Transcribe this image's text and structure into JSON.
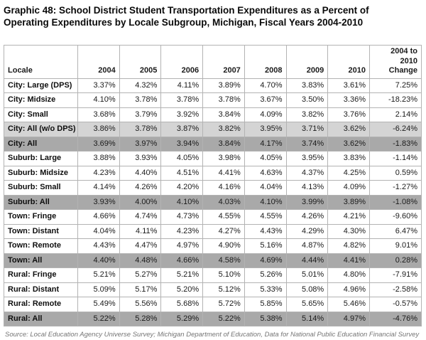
{
  "page": {
    "title": "Graphic 48: School District Student Transportation Expenditures as a Percent of Operating Expenditures by Locale Subgroup, Michigan, Fiscal Years 2004-2010",
    "source": "Source: Local Education Agency Universe Survey; Michigan Department of Education, Data for National Public Education Financial Survey"
  },
  "colors": {
    "row_shade_light": "#d4d4d4",
    "row_shade_dark": "#a9a9a9",
    "table_border": "#b3b3b3",
    "source_text": "#757575"
  },
  "chart_data": {
    "type": "table",
    "title": "Graphic 48: School District Student Transportation Expenditures as a Percent of Operating Expenditures by Locale Subgroup, Michigan, Fiscal Years 2004-2010",
    "columns": [
      "Locale",
      "2004",
      "2005",
      "2006",
      "2007",
      "2008",
      "2009",
      "2010",
      "2004 to 2010 Change"
    ],
    "rows": [
      {
        "locale": "City: Large (DPS)",
        "shade": "none",
        "values": [
          "3.37%",
          "4.32%",
          "4.11%",
          "3.89%",
          "4.70%",
          "3.83%",
          "3.61%",
          "7.25%"
        ]
      },
      {
        "locale": "City: Midsize",
        "shade": "none",
        "values": [
          "4.10%",
          "3.78%",
          "3.78%",
          "3.78%",
          "3.67%",
          "3.50%",
          "3.36%",
          "-18.23%"
        ]
      },
      {
        "locale": "City: Small",
        "shade": "none",
        "values": [
          "3.68%",
          "3.79%",
          "3.92%",
          "3.84%",
          "4.09%",
          "3.82%",
          "3.76%",
          "2.14%"
        ]
      },
      {
        "locale": "City: All (w/o DPS)",
        "shade": "light",
        "values": [
          "3.86%",
          "3.78%",
          "3.87%",
          "3.82%",
          "3.95%",
          "3.71%",
          "3.62%",
          "-6.24%"
        ]
      },
      {
        "locale": "City: All",
        "shade": "dark",
        "values": [
          "3.69%",
          "3.97%",
          "3.94%",
          "3.84%",
          "4.17%",
          "3.74%",
          "3.62%",
          "-1.83%"
        ]
      },
      {
        "locale": "Suburb: Large",
        "shade": "none",
        "values": [
          "3.88%",
          "3.93%",
          "4.05%",
          "3.98%",
          "4.05%",
          "3.95%",
          "3.83%",
          "-1.14%"
        ]
      },
      {
        "locale": "Suburb: Midsize",
        "shade": "none",
        "values": [
          "4.23%",
          "4.40%",
          "4.51%",
          "4.41%",
          "4.63%",
          "4.37%",
          "4.25%",
          "0.59%"
        ]
      },
      {
        "locale": "Suburb: Small",
        "shade": "none",
        "values": [
          "4.14%",
          "4.26%",
          "4.20%",
          "4.16%",
          "4.04%",
          "4.13%",
          "4.09%",
          "-1.27%"
        ]
      },
      {
        "locale": "Suburb: All",
        "shade": "dark",
        "values": [
          "3.93%",
          "4.00%",
          "4.10%",
          "4.03%",
          "4.10%",
          "3.99%",
          "3.89%",
          "-1.08%"
        ]
      },
      {
        "locale": "Town: Fringe",
        "shade": "none",
        "values": [
          "4.66%",
          "4.74%",
          "4.73%",
          "4.55%",
          "4.55%",
          "4.26%",
          "4.21%",
          "-9.60%"
        ]
      },
      {
        "locale": "Town: Distant",
        "shade": "none",
        "values": [
          "4.04%",
          "4.11%",
          "4.23%",
          "4.27%",
          "4.43%",
          "4.29%",
          "4.30%",
          "6.47%"
        ]
      },
      {
        "locale": "Town: Remote",
        "shade": "none",
        "values": [
          "4.43%",
          "4.47%",
          "4.97%",
          "4.90%",
          "5.16%",
          "4.87%",
          "4.82%",
          "9.01%"
        ]
      },
      {
        "locale": "Town: All",
        "shade": "dark",
        "values": [
          "4.40%",
          "4.48%",
          "4.66%",
          "4.58%",
          "4.69%",
          "4.44%",
          "4.41%",
          "0.28%"
        ]
      },
      {
        "locale": "Rural: Fringe",
        "shade": "none",
        "values": [
          "5.21%",
          "5.27%",
          "5.21%",
          "5.10%",
          "5.26%",
          "5.01%",
          "4.80%",
          "-7.91%"
        ]
      },
      {
        "locale": "Rural: Distant",
        "shade": "none",
        "values": [
          "5.09%",
          "5.17%",
          "5.20%",
          "5.12%",
          "5.33%",
          "5.08%",
          "4.96%",
          "-2.58%"
        ]
      },
      {
        "locale": "Rural: Remote",
        "shade": "none",
        "values": [
          "5.49%",
          "5.56%",
          "5.68%",
          "5.72%",
          "5.85%",
          "5.65%",
          "5.46%",
          "-0.57%"
        ]
      },
      {
        "locale": "Rural: All",
        "shade": "dark",
        "values": [
          "5.22%",
          "5.28%",
          "5.29%",
          "5.22%",
          "5.38%",
          "5.14%",
          "4.97%",
          "-4.76%"
        ]
      }
    ],
    "source": "Source: Local Education Agency Universe Survey; Michigan Department of Education, Data for National Public Education Financial Survey",
    "layout_hints": {
      "grid": true,
      "shaded_subtotal_rows": true,
      "value_alignment": "right"
    }
  }
}
